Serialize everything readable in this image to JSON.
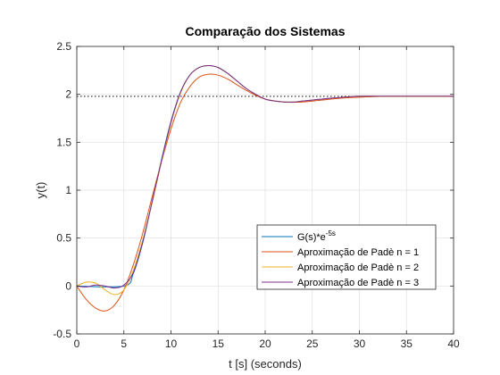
{
  "chart_data": {
    "type": "line",
    "title": "Comparação dos Sistemas",
    "xlabel": "t [s] (seconds)",
    "ylabel": "y(t)",
    "xlim": [
      0,
      40
    ],
    "ylim": [
      -0.5,
      2.5
    ],
    "xticks": [
      0,
      5,
      10,
      15,
      20,
      25,
      30,
      35,
      40
    ],
    "yticks": [
      -0.5,
      0,
      0.5,
      1,
      1.5,
      2,
      2.5
    ],
    "xtick_labels": [
      "0",
      "5",
      "10",
      "15",
      "20",
      "25",
      "30",
      "35",
      "40"
    ],
    "ytick_labels": [
      "-0.5",
      "0",
      "0.5",
      "1",
      "1.5",
      "2",
      "2.5"
    ],
    "grid": true,
    "legend_position": "lower-right",
    "reference_line": {
      "y": 1.98,
      "style": "dotted",
      "color": "#000000"
    },
    "series": [
      {
        "name": "G(s)*e",
        "name_superscript": "-5s",
        "color": "#0072BD",
        "x": [
          0,
          5,
          6,
          7,
          8,
          9,
          10,
          11,
          12,
          13,
          14,
          15,
          16,
          17,
          18,
          19,
          20,
          21,
          22,
          23,
          24,
          25,
          27,
          30,
          33,
          36,
          40
        ],
        "y": [
          0,
          0,
          0.13,
          0.45,
          0.88,
          1.32,
          1.72,
          2.02,
          2.2,
          2.28,
          2.3,
          2.28,
          2.22,
          2.14,
          2.06,
          2.0,
          1.95,
          1.93,
          1.92,
          1.92,
          1.93,
          1.94,
          1.96,
          1.98,
          1.98,
          1.98,
          1.98
        ]
      },
      {
        "name": "Aproximação de Padè n = 1",
        "color": "#D95319",
        "x": [
          0,
          1,
          2,
          3,
          4,
          5,
          6,
          7,
          8,
          9,
          10,
          11,
          12,
          13,
          14,
          15,
          16,
          17,
          18,
          19,
          20,
          22,
          24,
          26,
          28,
          30,
          33,
          36,
          40
        ],
        "y": [
          0,
          -0.14,
          -0.23,
          -0.26,
          -0.2,
          -0.04,
          0.22,
          0.55,
          0.93,
          1.3,
          1.64,
          1.91,
          2.08,
          2.18,
          2.21,
          2.2,
          2.16,
          2.1,
          2.04,
          1.99,
          1.95,
          1.92,
          1.92,
          1.94,
          1.96,
          1.97,
          1.98,
          1.98,
          1.98
        ]
      },
      {
        "name": "Aproximação de Padè n = 2",
        "color": "#EDB120",
        "x": [
          0,
          1,
          2,
          3,
          4,
          5,
          6,
          7,
          8,
          9,
          10,
          11,
          12,
          13,
          14,
          15,
          16,
          17,
          18,
          19,
          20,
          21,
          22,
          23,
          24,
          25,
          27,
          30,
          33,
          36,
          40
        ],
        "y": [
          0,
          0.04,
          0.03,
          -0.04,
          -0.09,
          -0.04,
          0.16,
          0.48,
          0.87,
          1.3,
          1.7,
          2.01,
          2.2,
          2.28,
          2.3,
          2.28,
          2.22,
          2.14,
          2.06,
          2.0,
          1.95,
          1.93,
          1.92,
          1.92,
          1.93,
          1.94,
          1.96,
          1.98,
          1.98,
          1.98,
          1.98
        ]
      },
      {
        "name": "Aproximação de Padè n = 3",
        "color": "#7E2F8E",
        "x": [
          0,
          1,
          2,
          3,
          4,
          5,
          6,
          7,
          8,
          9,
          10,
          11,
          12,
          13,
          14,
          15,
          16,
          17,
          18,
          19,
          20,
          21,
          22,
          23,
          24,
          25,
          27,
          30,
          33,
          36,
          40
        ],
        "y": [
          0,
          -0.01,
          0.01,
          0.0,
          -0.02,
          0.01,
          0.14,
          0.46,
          0.88,
          1.31,
          1.71,
          2.02,
          2.2,
          2.28,
          2.3,
          2.28,
          2.22,
          2.14,
          2.06,
          2.0,
          1.95,
          1.93,
          1.92,
          1.92,
          1.93,
          1.94,
          1.96,
          1.98,
          1.98,
          1.98,
          1.98
        ]
      }
    ]
  }
}
